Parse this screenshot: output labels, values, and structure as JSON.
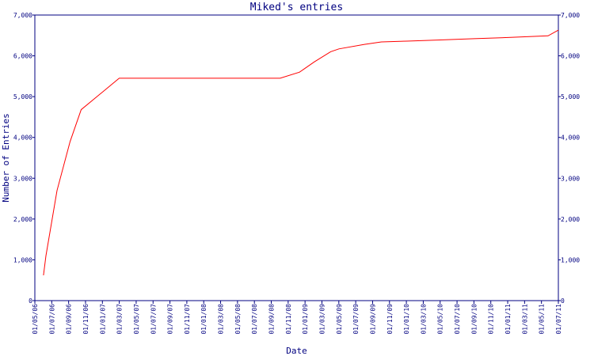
{
  "chart_data": {
    "type": "line",
    "title": "Miked's entries",
    "xlabel": "Date",
    "ylabel": "Number of Entries",
    "ylim": [
      0,
      7000
    ],
    "yticks": [
      0,
      1000,
      2000,
      3000,
      4000,
      5000,
      6000,
      7000
    ],
    "ytick_labels": [
      "0",
      "1,000",
      "2,000",
      "3,000",
      "4,000",
      "5,000",
      "6,000",
      "7,000"
    ],
    "xticks": [
      "01/05/06",
      "01/07/06",
      "01/09/06",
      "01/11/06",
      "01/01/07",
      "01/03/07",
      "01/05/07",
      "01/07/07",
      "01/09/07",
      "01/11/07",
      "01/01/08",
      "01/03/08",
      "01/05/08",
      "01/07/08",
      "01/09/08",
      "01/11/08",
      "01/01/09",
      "01/03/09",
      "01/05/09",
      "01/07/09",
      "01/09/09",
      "01/11/09",
      "01/01/10",
      "01/03/10",
      "01/05/10",
      "01/07/10",
      "01/09/10",
      "01/11/10",
      "01/01/11",
      "01/03/11",
      "01/05/11",
      "01/07/11"
    ],
    "x_start": "2006-05-01",
    "x_end": "2011-07-01",
    "grid": false,
    "line_color": "#ff0000",
    "axis_color": "#000080",
    "right_axis_mirror": true,
    "series": [
      {
        "points": [
          {
            "x": "2006-06-01",
            "y": 620
          },
          {
            "x": "2006-06-10",
            "y": 1100
          },
          {
            "x": "2006-07-20",
            "y": 2700
          },
          {
            "x": "2006-09-05",
            "y": 3900
          },
          {
            "x": "2006-10-15",
            "y": 4680
          },
          {
            "x": "2007-03-01",
            "y": 5450
          },
          {
            "x": "2008-10-01",
            "y": 5450
          },
          {
            "x": "2008-12-10",
            "y": 5600
          },
          {
            "x": "2009-02-01",
            "y": 5850
          },
          {
            "x": "2009-04-01",
            "y": 6100
          },
          {
            "x": "2009-05-01",
            "y": 6170
          },
          {
            "x": "2009-08-01",
            "y": 6280
          },
          {
            "x": "2009-10-01",
            "y": 6340
          },
          {
            "x": "2010-01-01",
            "y": 6360
          },
          {
            "x": "2010-05-01",
            "y": 6390
          },
          {
            "x": "2010-09-01",
            "y": 6420
          },
          {
            "x": "2011-01-01",
            "y": 6450
          },
          {
            "x": "2011-05-25",
            "y": 6490
          },
          {
            "x": "2011-07-01",
            "y": 6630
          }
        ]
      }
    ]
  }
}
